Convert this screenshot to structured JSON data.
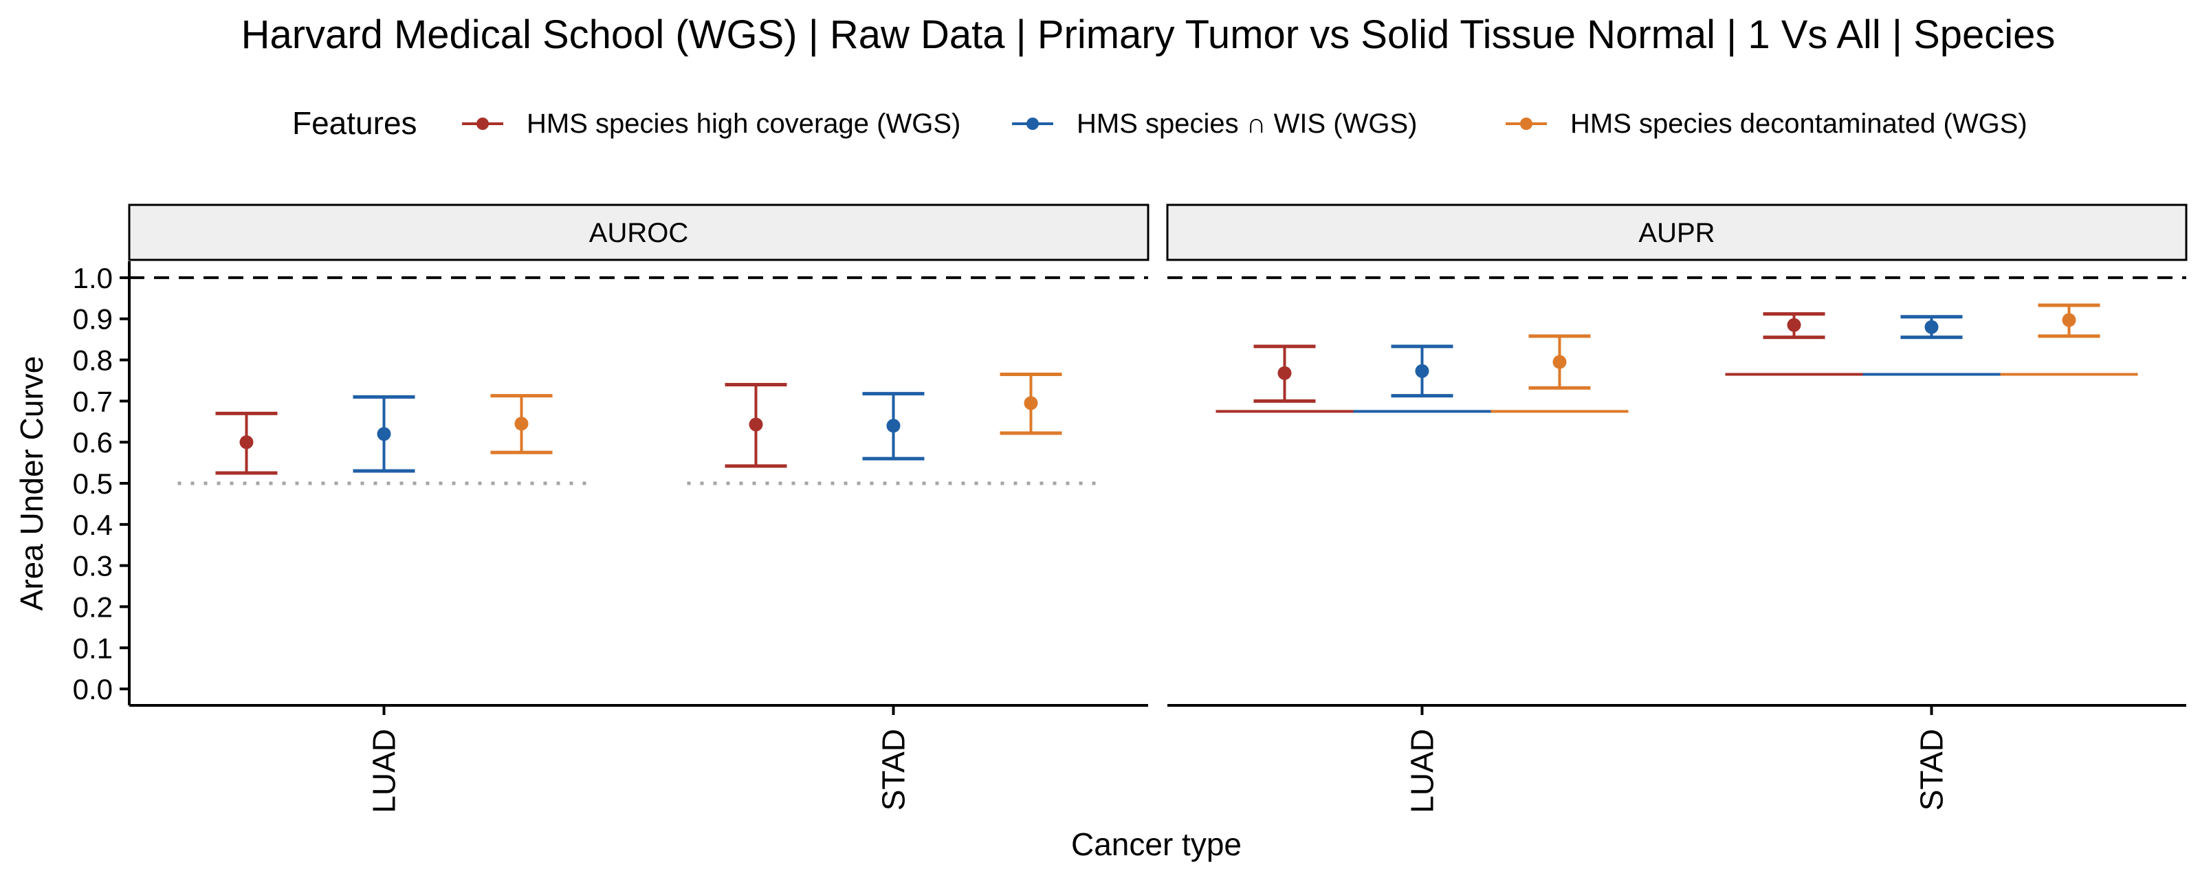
{
  "chart_data": {
    "type": "errorbar",
    "title": "Harvard Medical School (WGS) | Raw Data | Primary Tumor vs Solid Tissue Normal | 1 Vs All | Species",
    "xlabel": "Cancer type",
    "ylabel": "Area Under Curve",
    "ylim": [
      0,
      1
    ],
    "yticks": [
      "0.0",
      "0.1",
      "0.2",
      "0.3",
      "0.4",
      "0.5",
      "0.6",
      "0.7",
      "0.8",
      "0.9",
      "1.0"
    ],
    "categories": [
      "LUAD",
      "STAD"
    ],
    "legend": {
      "title": "Features",
      "placement": "top",
      "entries": [
        {
          "name": "HMS species high coverage (WGS)",
          "color": "#A8302A"
        },
        {
          "name": "HMS species ∩ WIS (WGS)",
          "color": "#1F5FA6"
        },
        {
          "name": "HMS species decontaminated (WGS)",
          "color": "#DD7A2A"
        }
      ]
    },
    "reference_line": 1.0,
    "facets": [
      {
        "label": "AUROC",
        "baseline": [
          {
            "category": "LUAD",
            "value": 0.5
          },
          {
            "category": "STAD",
            "value": 0.5
          }
        ],
        "series": [
          {
            "name": "HMS species high coverage (WGS)",
            "values": [
              0.6,
              0.643
            ],
            "lower": [
              0.525,
              0.542
            ],
            "upper": [
              0.67,
              0.74
            ]
          },
          {
            "name": "HMS species ∩ WIS (WGS)",
            "values": [
              0.62,
              0.64
            ],
            "lower": [
              0.53,
              0.56
            ],
            "upper": [
              0.71,
              0.718
            ]
          },
          {
            "name": "HMS species decontaminated (WGS)",
            "values": [
              0.645,
              0.695
            ],
            "lower": [
              0.575,
              0.622
            ],
            "upper": [
              0.713,
              0.765
            ]
          }
        ]
      },
      {
        "label": "AUPR",
        "baseline": [
          {
            "category": "LUAD",
            "value": 0.675
          },
          {
            "category": "STAD",
            "value": 0.765
          }
        ],
        "series": [
          {
            "name": "HMS species high coverage (WGS)",
            "values": [
              0.768,
              0.885
            ],
            "lower": [
              0.7,
              0.855
            ],
            "upper": [
              0.833,
              0.912
            ]
          },
          {
            "name": "HMS species ∩ WIS (WGS)",
            "values": [
              0.773,
              0.88
            ],
            "lower": [
              0.713,
              0.855
            ],
            "upper": [
              0.833,
              0.905
            ]
          },
          {
            "name": "HMS species decontaminated (WGS)",
            "values": [
              0.795,
              0.897
            ],
            "lower": [
              0.732,
              0.858
            ],
            "upper": [
              0.858,
              0.933
            ]
          }
        ]
      }
    ]
  }
}
